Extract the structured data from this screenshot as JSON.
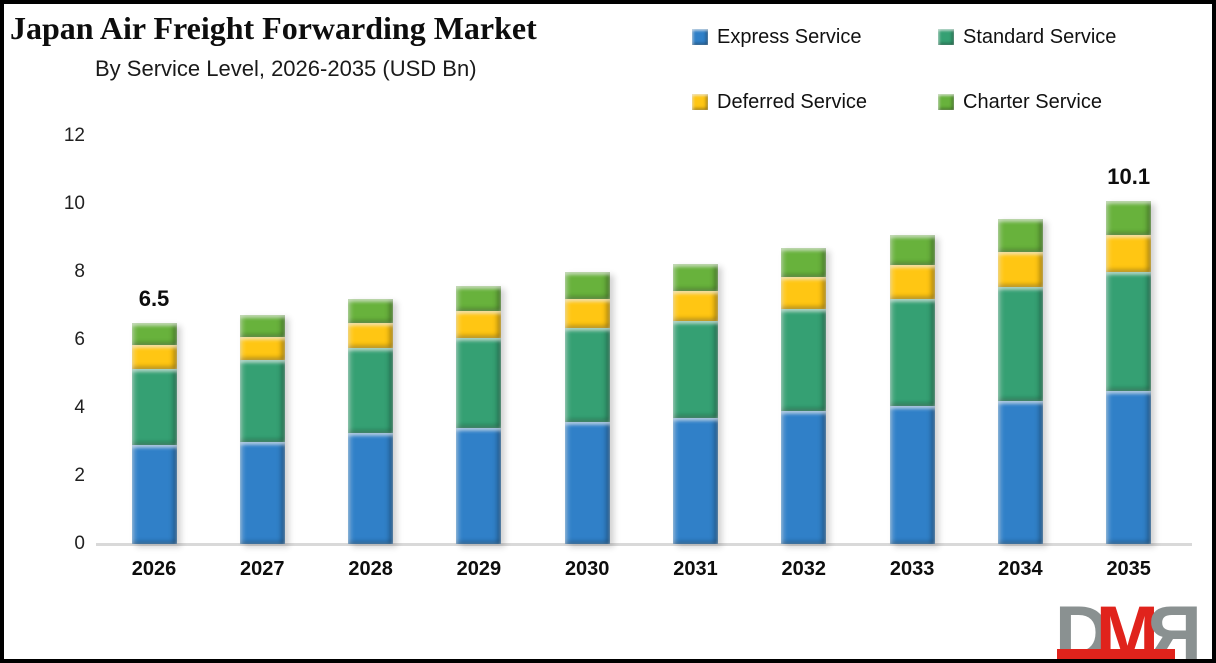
{
  "header": {
    "title": "Japan Air Freight Forwarding Market",
    "subtitle": "By Service Level, 2026-2035 (USD Bn)"
  },
  "chart_data": {
    "type": "bar",
    "stacked": true,
    "title": "Japan Air Freight Forwarding Market",
    "subtitle": "By Service Level, 2026-2035 (USD Bn)",
    "unit": "USD Bn",
    "categories": [
      "2026",
      "2027",
      "2028",
      "2029",
      "2030",
      "2031",
      "2032",
      "2033",
      "2034",
      "2035"
    ],
    "series": [
      {
        "name": "Express Service",
        "color": "#3080c8",
        "values": [
          2.9,
          3.0,
          3.25,
          3.4,
          3.6,
          3.7,
          3.9,
          4.05,
          4.2,
          4.5
        ]
      },
      {
        "name": "Standard Service",
        "color": "#35a073",
        "values": [
          2.25,
          2.4,
          2.5,
          2.65,
          2.75,
          2.85,
          3.0,
          3.15,
          3.35,
          3.5
        ]
      },
      {
        "name": "Deferred Service",
        "color": "#ffc613",
        "values": [
          0.7,
          0.7,
          0.75,
          0.8,
          0.85,
          0.9,
          0.95,
          1.0,
          1.05,
          1.1
        ]
      },
      {
        "name": "Charter Service",
        "color": "#68b23c",
        "values": [
          0.65,
          0.65,
          0.7,
          0.75,
          0.8,
          0.8,
          0.85,
          0.9,
          0.95,
          1.0
        ]
      }
    ],
    "totals_labeled": {
      "2026": "6.5",
      "2035": "10.1"
    },
    "ylim": [
      0,
      12
    ],
    "yticks": [
      "0",
      "2",
      "4",
      "6",
      "8",
      "10",
      "12"
    ],
    "grid": false,
    "legend_position": "top-right"
  },
  "watermark": {
    "letters": {
      "d": "D",
      "m": "M",
      "r": "R"
    },
    "gray": "#8a9191",
    "red": "#e0231c"
  }
}
